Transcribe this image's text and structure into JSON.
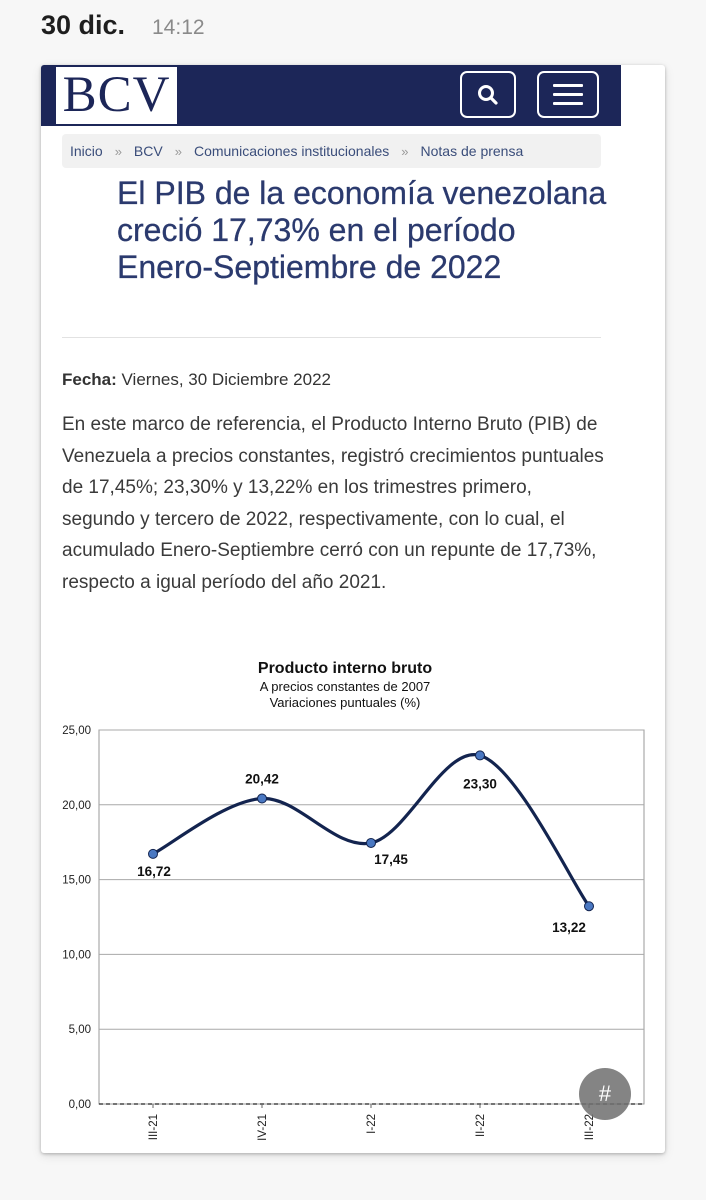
{
  "status": {
    "date": "30 dic.",
    "time": "14:12"
  },
  "header": {
    "logo": "BCV",
    "colors": {
      "navy": "#1c2658",
      "title": "#2b3a6e"
    }
  },
  "breadcrumb": [
    "Inicio",
    "BCV",
    "Comunicaciones institucionales",
    "Notas de prensa"
  ],
  "article": {
    "title": "El PIB de la economía venezolana creció 17,73% en el período Enero-Septiembre de 2022",
    "fecha_label": "Fecha:",
    "fecha_value": " Viernes, 30 Diciembre 2022",
    "body": "En este marco de referencia, el Producto Interno Bruto (PIB) de Venezuela a precios constantes, registró crecimientos puntuales de 17,45%; 23,30% y 13,22% en los trimestres primero, segundo y tercero de 2022, respectivamente, con lo cual, el acumulado Enero-Septiembre cerró con un repunte de 17,73%, respecto a igual período del año 2021."
  },
  "fab": {
    "label": "#"
  },
  "chart_data": {
    "type": "line",
    "title": "Producto interno bruto",
    "subtitle1": "A precios constantes de 2007",
    "subtitle2": "Variaciones puntuales (%)",
    "categories": [
      "III-21",
      "IV-21",
      "I-22",
      "II-22",
      "III-22"
    ],
    "values": [
      16.72,
      20.42,
      17.45,
      23.3,
      13.22
    ],
    "value_labels": [
      "16,72",
      "20,42",
      "17,45",
      "23,30",
      "13,22"
    ],
    "yticks": [
      "0,00",
      "5,00",
      "10,00",
      "15,00",
      "20,00",
      "25,00"
    ],
    "ylim": [
      0,
      25
    ],
    "line_color": "#13244f",
    "point_color": "#4a78c2",
    "xlabel": "",
    "ylabel": ""
  }
}
